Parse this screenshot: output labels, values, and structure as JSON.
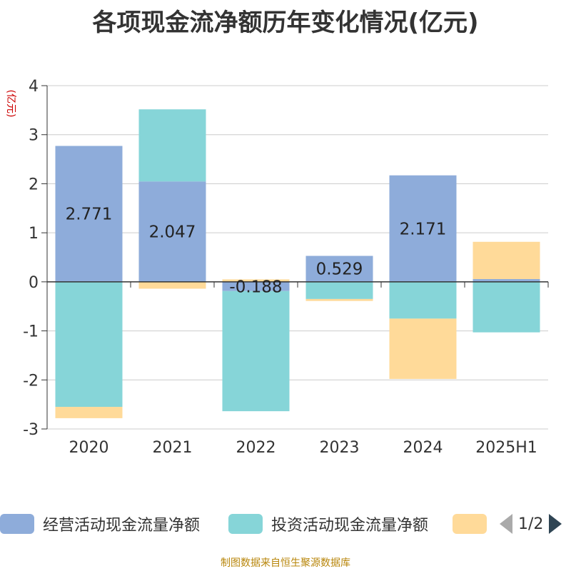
{
  "title": "各项现金流净额历年变化情况(亿元)",
  "source": "制图数据来自恒生聚源数据库",
  "legend": {
    "items": [
      {
        "label": "经营活动现金流量净额",
        "color": "#8eacda"
      },
      {
        "label": "投资活动现金流量净额",
        "color": "#86d5d8"
      },
      {
        "label": "",
        "color": "#ffda99"
      }
    ],
    "pager": "1/2"
  },
  "chart_data": {
    "type": "bar",
    "stacked": true,
    "categories": [
      "2020",
      "2021",
      "2022",
      "2023",
      "2024",
      "2025H1"
    ],
    "ylabel": "(亿元)",
    "ylim": [
      -3,
      4
    ],
    "yticks": [
      4,
      3,
      2,
      1,
      0,
      -1,
      -2,
      -3
    ],
    "grid": true,
    "series": [
      {
        "name": "经营活动现金流量净额",
        "color": "#8eacda",
        "values": [
          2.771,
          2.047,
          -0.188,
          0.529,
          2.171,
          0.056
        ],
        "labels": [
          "2.771",
          "2.047",
          "-0.188",
          "0.529",
          "2.171",
          ""
        ]
      },
      {
        "name": "投资活动现金流量净额",
        "color": "#86d5d8",
        "values": [
          -2.55,
          1.47,
          -2.45,
          -0.35,
          -0.75,
          -1.03
        ]
      },
      {
        "name": "",
        "color": "#ffda99",
        "values": [
          -0.23,
          -0.14,
          0.05,
          -0.04,
          -1.23,
          0.76
        ]
      }
    ]
  }
}
